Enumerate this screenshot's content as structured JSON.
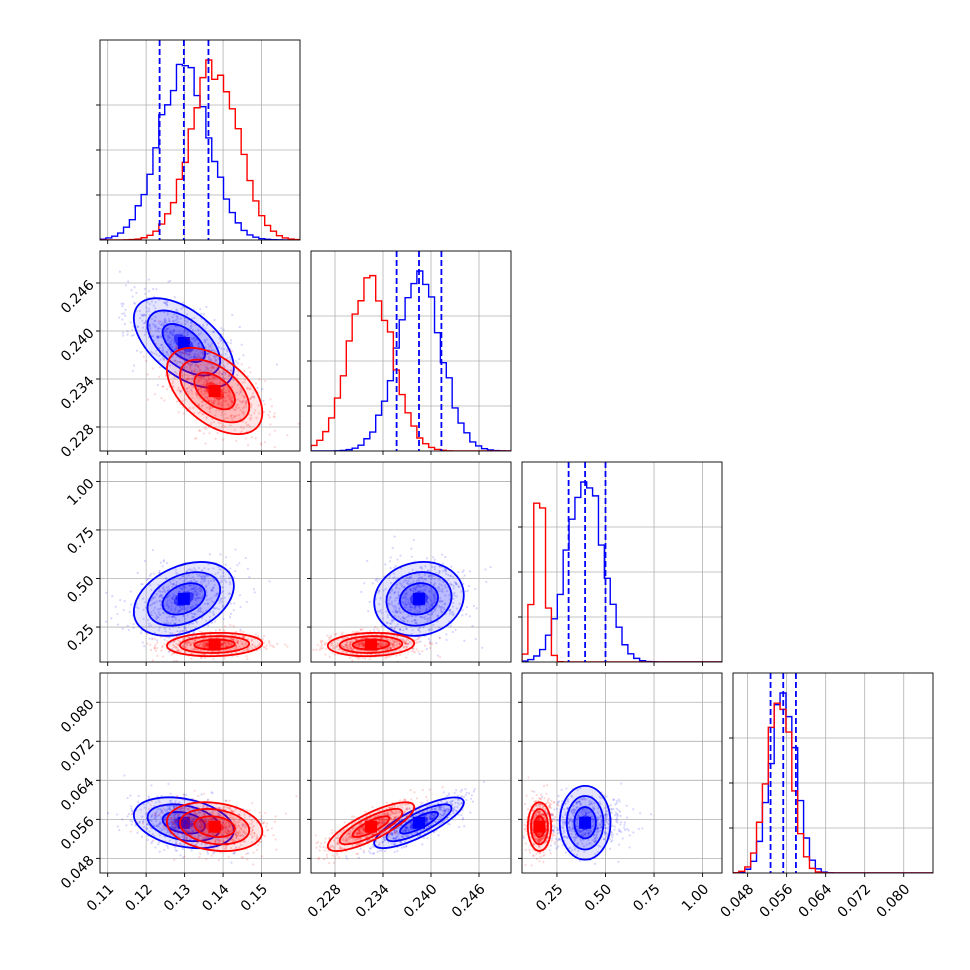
{
  "chart_data": {
    "type": "corner",
    "title": "",
    "colors": {
      "series_a": "#0000ff",
      "series_b": "#ff0000",
      "grid": "#b0b0b0"
    },
    "parameters": [
      {
        "range": [
          0.108,
          0.16
        ],
        "ticks": [
          0.11,
          0.12,
          0.13,
          0.14,
          0.15
        ],
        "tick_labels": [
          "0.11",
          "0.12",
          "0.13",
          "0.14",
          "0.15"
        ]
      },
      {
        "range": [
          0.225,
          0.25
        ],
        "ticks": [
          0.228,
          0.234,
          0.24,
          0.246
        ],
        "tick_labels": [
          "0.228",
          "0.234",
          "0.240",
          "0.246"
        ]
      },
      {
        "range": [
          0.07,
          1.1
        ],
        "ticks": [
          0.25,
          0.5,
          0.75,
          1.0
        ],
        "tick_labels": [
          "0.25",
          "0.50",
          "0.75",
          "1.00"
        ]
      },
      {
        "range": [
          0.045,
          0.086
        ],
        "ticks": [
          0.048,
          0.056,
          0.064,
          0.072,
          0.08
        ],
        "tick_labels": [
          "0.048",
          "0.056",
          "0.064",
          "0.072",
          "0.080"
        ]
      }
    ],
    "series": [
      {
        "color": "#0000ff",
        "mean": [
          0.1298,
          0.2385,
          0.395,
          0.0553
        ],
        "std": [
          0.0065,
          0.0028,
          0.095,
          0.0026
        ],
        "corr": [
          [
            1,
            -0.55,
            0.35,
            -0.3
          ],
          [
            -0.55,
            1,
            0.1,
            0.8
          ],
          [
            0.35,
            0.1,
            1,
            0.0
          ],
          [
            -0.3,
            0.8,
            0.0,
            1
          ]
        ],
        "quantiles": [
          [
            0.1235,
            0.1298,
            0.1362
          ],
          [
            0.2357,
            0.2385,
            0.2413
          ],
          [
            0.31,
            0.395,
            0.5
          ],
          [
            0.0527,
            0.0553,
            0.0579
          ]
        ]
      },
      {
        "color": "#ff0000",
        "mean": [
          0.1378,
          0.2325,
          0.16,
          0.0545
        ],
        "std": [
          0.0062,
          0.0027,
          0.03,
          0.0025
        ],
        "corr": [
          [
            1,
            -0.5,
            0.1,
            -0.2
          ],
          [
            -0.5,
            1,
            0.1,
            0.8
          ],
          [
            0.1,
            0.1,
            1,
            0.0
          ],
          [
            -0.2,
            0.8,
            0.0,
            1
          ]
        ],
        "quantiles": []
      }
    ],
    "grid": true,
    "legend": "none"
  }
}
